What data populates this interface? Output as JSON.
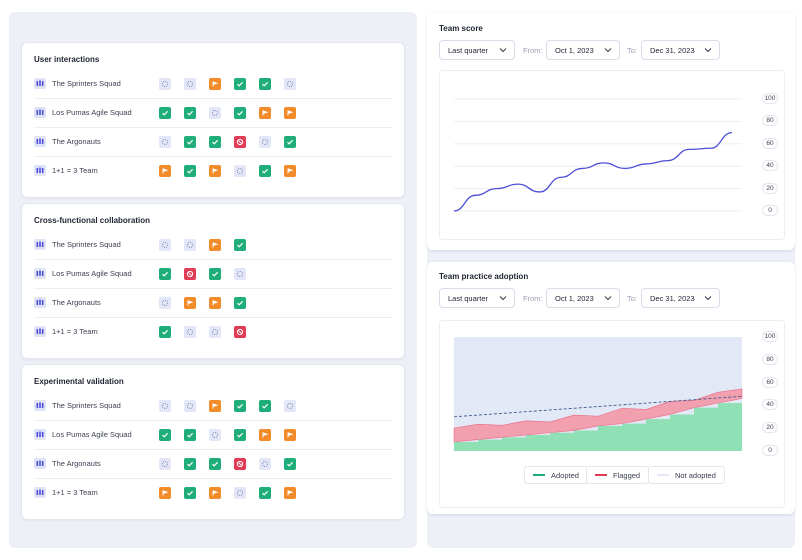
{
  "colors": {
    "adopted": "#1fae7a",
    "flagged": "#f28c2b",
    "blocked": "#e23b55",
    "pending": "#e2e6f7",
    "line": "#4b4fd6"
  },
  "sections": [
    {
      "title": "User interactions",
      "rows": [
        {
          "team": "The Sprinters Squad",
          "statuses": [
            "pending",
            "pending",
            "flagged",
            "adopted",
            "adopted",
            "pending"
          ]
        },
        {
          "team": "Los Pumas Agile Squad",
          "statuses": [
            "adopted",
            "adopted",
            "pending",
            "adopted",
            "flagged",
            "flagged"
          ]
        },
        {
          "team": "The Argonauts",
          "statuses": [
            "pending",
            "adopted",
            "adopted",
            "blocked",
            "pending",
            "adopted"
          ]
        },
        {
          "team": "1+1 = 3 Team",
          "statuses": [
            "flagged",
            "adopted",
            "flagged",
            "pending",
            "adopted",
            "flagged"
          ]
        }
      ]
    },
    {
      "title": "Cross-functional collaboration",
      "rows": [
        {
          "team": "The Sprinters Squad",
          "statuses": [
            "pending",
            "pending",
            "flagged",
            "adopted"
          ]
        },
        {
          "team": "Los Pumas Agile Squad",
          "statuses": [
            "adopted",
            "blocked",
            "adopted",
            "pending"
          ]
        },
        {
          "team": "The Argonauts",
          "statuses": [
            "pending",
            "flagged",
            "flagged",
            "adopted"
          ]
        },
        {
          "team": "1+1 = 3 Team",
          "statuses": [
            "adopted",
            "pending",
            "pending",
            "blocked"
          ]
        }
      ]
    },
    {
      "title": "Experimental validation",
      "rows": [
        {
          "team": "The Sprinters Squad",
          "statuses": [
            "pending",
            "pending",
            "flagged",
            "adopted",
            "adopted",
            "pending"
          ]
        },
        {
          "team": "Los Pumas Agile Squad",
          "statuses": [
            "adopted",
            "adopted",
            "pending",
            "adopted",
            "flagged",
            "flagged"
          ]
        },
        {
          "team": "The Argonauts",
          "statuses": [
            "pending",
            "adopted",
            "adopted",
            "blocked",
            "pending",
            "adopted"
          ]
        },
        {
          "team": "1+1 = 3 Team",
          "statuses": [
            "flagged",
            "adopted",
            "flagged",
            "pending",
            "adopted",
            "flagged"
          ]
        }
      ]
    }
  ],
  "team_score": {
    "title": "Team score",
    "period": "Last quarter",
    "from_label": "From:",
    "from_date": "Oct 1, 2023",
    "to_label": "To:",
    "to_date": "Dec 31, 2023"
  },
  "adoption": {
    "title": "Team practice adoption",
    "period": "Last quarter",
    "from_label": "From:",
    "from_date": "Oct 1, 2023",
    "to_label": "To:",
    "to_date": "Dec 31, 2023",
    "legend": [
      "Adopted",
      "Flagged",
      "Not adopted"
    ]
  },
  "chart_data": [
    {
      "type": "line",
      "title": "Team score",
      "ylim": [
        0,
        100
      ],
      "yticks": [
        "100",
        "80",
        "60",
        "40",
        "20",
        "0"
      ],
      "series": [
        {
          "values": [
            0,
            14,
            20,
            24,
            17,
            30,
            38,
            43,
            38,
            42,
            45,
            55,
            56,
            70
          ]
        }
      ]
    },
    {
      "type": "area",
      "title": "Team practice adoption",
      "ylim": [
        0,
        100
      ],
      "yticks": [
        "100",
        "80",
        "60",
        "40",
        "20",
        "0"
      ],
      "series": [
        {
          "name": "Adopted",
          "values": [
            8,
            10,
            12,
            14,
            16,
            18,
            22,
            24,
            28,
            32,
            38,
            42,
            46
          ]
        },
        {
          "name": "Flagged",
          "values": [
            20,
            22,
            24,
            25,
            27,
            30,
            32,
            36,
            38,
            42,
            46,
            50,
            56
          ]
        },
        {
          "name": "Not adopted",
          "values": [
            100,
            100,
            100,
            100,
            100,
            100,
            100,
            100,
            100,
            100,
            100,
            100,
            100
          ]
        }
      ],
      "trend": [
        30,
        48
      ],
      "grid": true,
      "legend": "bottom"
    }
  ]
}
